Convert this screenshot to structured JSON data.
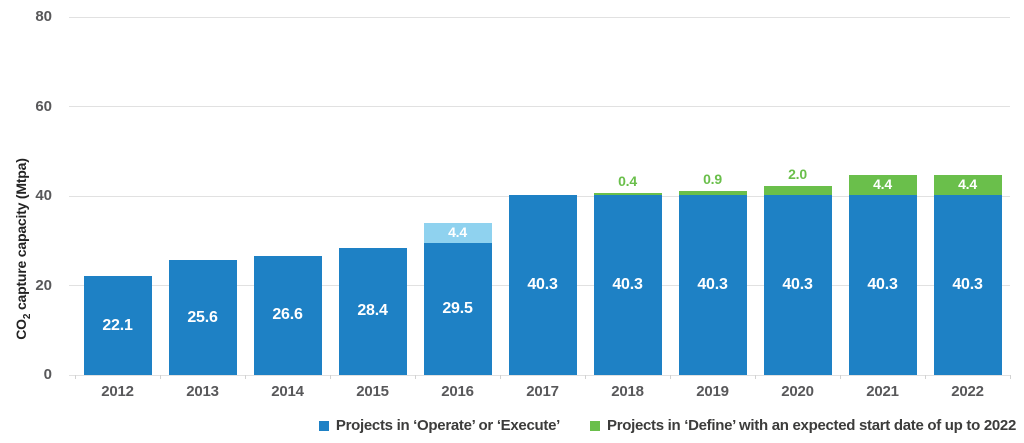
{
  "chart_data": {
    "type": "bar",
    "stacked": true,
    "title": "",
    "ylabel": {
      "prefix": "CO",
      "subscript": "2",
      "suffix": " capture capacity (Mtpa)"
    },
    "ylim": [
      0,
      80
    ],
    "yticks": [
      0,
      20,
      40,
      60,
      80
    ],
    "grid": "horizontal",
    "legend_position": "bottom-right",
    "categories": [
      "2012",
      "2013",
      "2014",
      "2015",
      "2016",
      "2017",
      "2018",
      "2019",
      "2020",
      "2021",
      "2022"
    ],
    "series": [
      {
        "name": "Projects in ‘Operate’ or ‘Execute’",
        "color": "#1e81c5",
        "values": [
          22.1,
          25.6,
          26.6,
          28.4,
          29.5,
          40.3,
          40.3,
          40.3,
          40.3,
          40.3,
          40.3
        ]
      }
    ],
    "top_segments": [
      {
        "category": "2016",
        "value": 4.4,
        "color": "#8fd2ef",
        "label_color": "#ffffff",
        "label_position": "inside"
      },
      {
        "category": "2018",
        "value": 0.4,
        "color": "#6abf4b",
        "label_color": "#6abf4b",
        "label_position": "above"
      },
      {
        "category": "2019",
        "value": 0.9,
        "color": "#6abf4b",
        "label_color": "#6abf4b",
        "label_position": "above"
      },
      {
        "category": "2020",
        "value": 2.0,
        "color": "#6abf4b",
        "label_color": "#6abf4b",
        "label_position": "above"
      },
      {
        "category": "2021",
        "value": 4.4,
        "color": "#6abf4b",
        "label_color": "#ffffff",
        "label_position": "inside"
      },
      {
        "category": "2022",
        "value": 4.4,
        "color": "#6abf4b",
        "label_color": "#ffffff",
        "label_position": "inside"
      }
    ],
    "value_label_color": "#ffffff",
    "legend": [
      {
        "label": "Projects in ‘Operate’ or ‘Execute’",
        "color": "#1e81c5"
      },
      {
        "label": "Projects in ‘Define’ with an expected start date of up to 2022",
        "color": "#6abf4b"
      }
    ]
  }
}
